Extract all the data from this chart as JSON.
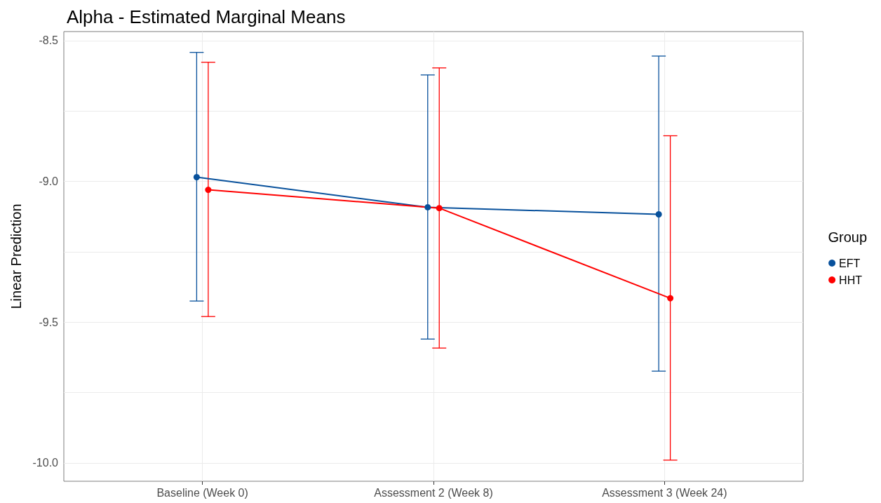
{
  "chart_data": {
    "type": "line",
    "title": "Alpha - Estimated Marginal Means",
    "ylabel": "Linear Prediction",
    "legend_title": "Group",
    "categories": [
      "Baseline (Week 0)",
      "Assessment 2 (Week 8)",
      "Assessment 3 (Week 24)"
    ],
    "series": [
      {
        "name": "EFT",
        "color": "#08519c",
        "values": [
          -8.985,
          -9.092,
          -9.117
        ],
        "errors": [
          [
            -9.425,
            -8.542
          ],
          [
            -9.56,
            -8.622
          ],
          [
            -9.674,
            -8.555
          ]
        ]
      },
      {
        "name": "HHT",
        "color": "#ff0000",
        "values": [
          -9.03,
          -9.095,
          -9.415
        ],
        "errors": [
          [
            -9.48,
            -8.577
          ],
          [
            -9.592,
            -8.597
          ],
          [
            -9.99,
            -8.838
          ]
        ]
      }
    ],
    "ylim": [
      -10.065,
      -8.468
    ],
    "yticks": [
      {
        "value": -8.5,
        "label": "-8.5"
      },
      {
        "value": -8.75,
        "label": null
      },
      {
        "value": -9.0,
        "label": "-9.0"
      },
      {
        "value": -9.25,
        "label": null
      },
      {
        "value": -9.5,
        "label": "-9.5"
      },
      {
        "value": -9.75,
        "label": null
      },
      {
        "value": -10.0,
        "label": "-10.0"
      }
    ],
    "grid": true,
    "legend": "right",
    "marker": "circle",
    "line_style": "solid"
  }
}
